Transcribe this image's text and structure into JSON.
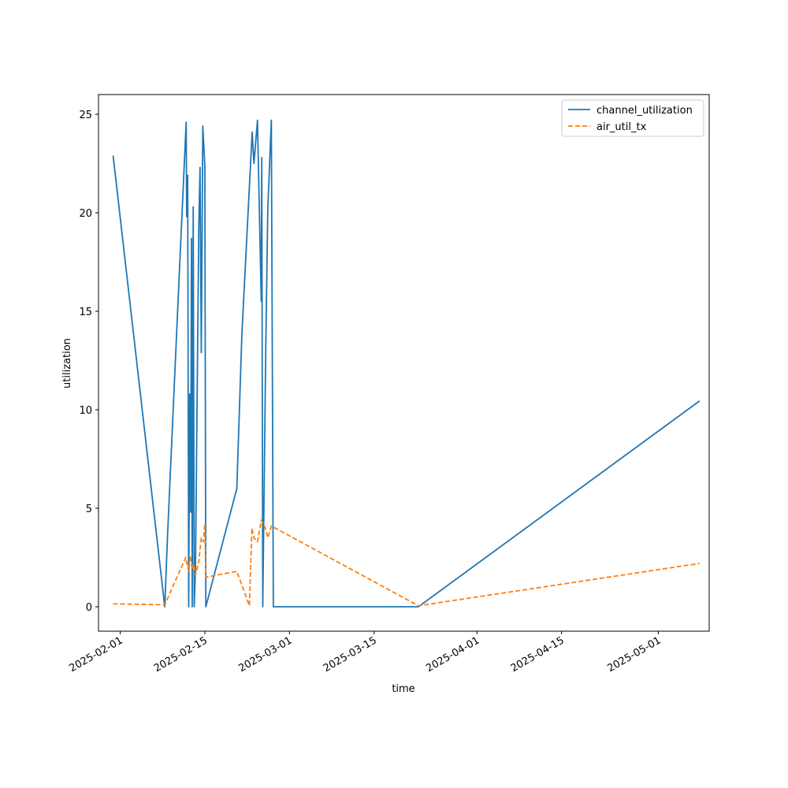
{
  "chart_data": {
    "type": "line",
    "title": "",
    "xlabel": "time",
    "ylabel": "utilization",
    "x_axis_type": "date",
    "xlim": [
      "2025-01-28T10:00",
      "2025-05-09T10:00"
    ],
    "ylim": [
      -1.24,
      26.0
    ],
    "x_ticks": [
      "2025-02-01",
      "2025-02-15",
      "2025-03-01",
      "2025-03-15",
      "2025-04-01",
      "2025-04-15",
      "2025-05-01"
    ],
    "y_ticks": [
      0,
      5,
      10,
      15,
      20,
      25
    ],
    "grid": false,
    "legend_position": "top-right",
    "series": [
      {
        "name": "channel_utilization",
        "color": "#1f77b4",
        "line_style": "solid",
        "points": [
          [
            "2025-01-30T20:00",
            22.9
          ],
          [
            "2025-02-08T09:00",
            0.0
          ],
          [
            "2025-02-08T20:00",
            3.6
          ],
          [
            "2025-02-10T12:00",
            15.0
          ],
          [
            "2025-02-11T22:00",
            24.6
          ],
          [
            "2025-02-12T00:00",
            19.8
          ],
          [
            "2025-02-12T04:00",
            21.9
          ],
          [
            "2025-02-12T08:00",
            0.0
          ],
          [
            "2025-02-12T12:00",
            10.8
          ],
          [
            "2025-02-12T16:00",
            4.8
          ],
          [
            "2025-02-12T19:00",
            18.7
          ],
          [
            "2025-02-12T22:00",
            0.0
          ],
          [
            "2025-02-13T02:00",
            20.3
          ],
          [
            "2025-02-13T06:00",
            0.0
          ],
          [
            "2025-02-13T11:00",
            2.0
          ],
          [
            "2025-02-14T00:00",
            19.2
          ],
          [
            "2025-02-14T05:00",
            22.3
          ],
          [
            "2025-02-14T10:00",
            12.9
          ],
          [
            "2025-02-14T16:00",
            24.4
          ],
          [
            "2025-02-15T00:00",
            22.4
          ],
          [
            "2025-02-15T04:00",
            0.0
          ],
          [
            "2025-02-20T07:00",
            6.0
          ],
          [
            "2025-02-21T03:00",
            13.8
          ],
          [
            "2025-02-22T20:00",
            24.1
          ],
          [
            "2025-02-23T03:00",
            22.5
          ],
          [
            "2025-02-23T17:00",
            24.7
          ],
          [
            "2025-02-24T08:00",
            15.5
          ],
          [
            "2025-02-24T10:00",
            22.8
          ],
          [
            "2025-02-24T14:00",
            0.0
          ],
          [
            "2025-02-25T02:00",
            13.2
          ],
          [
            "2025-02-25T10:00",
            20.2
          ],
          [
            "2025-02-26T00:00",
            24.7
          ],
          [
            "2025-02-26T08:00",
            0.0
          ],
          [
            "2025-03-22T08:00",
            0.0
          ],
          [
            "2025-05-07T20:00",
            10.45
          ]
        ]
      },
      {
        "name": "air_util_tx",
        "color": "#ff7f0e",
        "line_style": "dashed",
        "points": [
          [
            "2025-01-30T20:00",
            0.15
          ],
          [
            "2025-02-08T09:00",
            0.1
          ],
          [
            "2025-02-11T20:00",
            2.5
          ],
          [
            "2025-02-12T08:00",
            1.8
          ],
          [
            "2025-02-12T14:00",
            2.6
          ],
          [
            "2025-02-12T22:00",
            1.9
          ],
          [
            "2025-02-13T04:00",
            2.2
          ],
          [
            "2025-02-13T11:00",
            1.6
          ],
          [
            "2025-02-14T00:00",
            2.3
          ],
          [
            "2025-02-14T10:00",
            3.5
          ],
          [
            "2025-02-14T18:00",
            3.3
          ],
          [
            "2025-02-15T00:00",
            4.2
          ],
          [
            "2025-02-15T04:00",
            1.5
          ],
          [
            "2025-02-20T07:00",
            1.8
          ],
          [
            "2025-02-22T09:00",
            0.05
          ],
          [
            "2025-02-22T19:00",
            4.0
          ],
          [
            "2025-02-23T03:00",
            3.5
          ],
          [
            "2025-02-23T17:00",
            3.3
          ],
          [
            "2025-02-24T08:00",
            4.4
          ],
          [
            "2025-02-25T00:00",
            4.0
          ],
          [
            "2025-02-25T10:00",
            3.5
          ],
          [
            "2025-02-26T00:00",
            4.1
          ],
          [
            "2025-03-22T08:00",
            0.05
          ],
          [
            "2025-05-07T20:00",
            2.2
          ]
        ]
      }
    ]
  }
}
